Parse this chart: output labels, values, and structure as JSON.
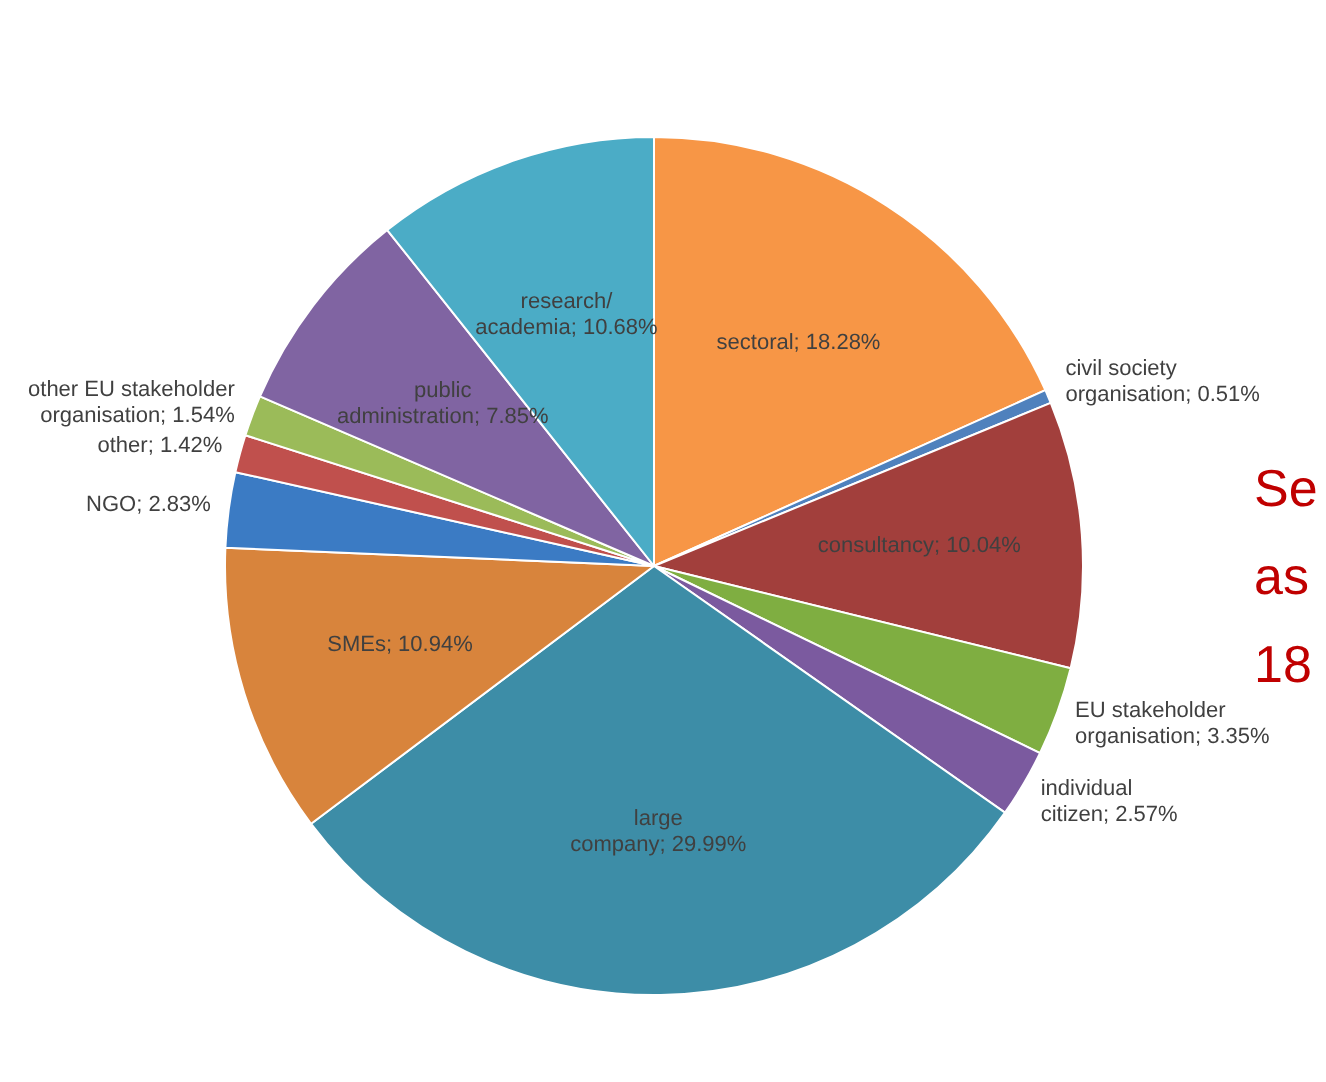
{
  "chart_data": {
    "type": "pie",
    "categories": [
      "sectoral",
      "civil society organisation",
      "consultancy",
      "EU stakeholder organisation",
      "individual citizen",
      "large company",
      "SMEs",
      "NGO",
      "other",
      "other EU stakeholder organisation",
      "public administration",
      "research/ academia"
    ],
    "values": [
      18.28,
      0.51,
      10.04,
      3.35,
      2.57,
      29.99,
      10.94,
      2.83,
      1.42,
      1.54,
      7.85,
      10.68
    ],
    "value_labels": [
      "18.28%",
      "0.51%",
      "10.04%",
      "3.35%",
      "2.57%",
      "29.99%",
      "10.94%",
      "2.83%",
      "1.42%",
      "1.54%",
      "7.85%",
      "10.68%"
    ],
    "colors": [
      "#f79646",
      "#4f81bd",
      "#a23f3c",
      "#7fae41",
      "#7b5a9f",
      "#3d8da7",
      "#d8843c",
      "#3b7bc4",
      "#c0504d",
      "#9bbb59",
      "#8064a2",
      "#4bacc6"
    ],
    "annotations": [
      "Se",
      "as",
      "18"
    ],
    "legend": false
  }
}
